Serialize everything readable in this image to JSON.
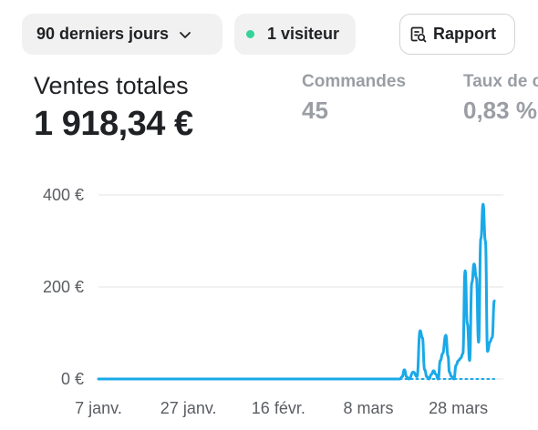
{
  "filters": {
    "period_label": "90 derniers jours",
    "visitors_label": "1 visiteur",
    "report_label": "Rapport"
  },
  "metrics": {
    "total_sales": {
      "label": "Ventes totales",
      "value": "1 918,34 €"
    },
    "orders": {
      "label": "Commandes",
      "value": "45"
    },
    "conversion": {
      "label": "Taux de c",
      "value": "0,83 %"
    }
  },
  "colors": {
    "line": "#1aa9e8",
    "dot_green": "#34d399",
    "grid": "#e3e3e3",
    "muted": "#9a9ea4",
    "axis_text": "#5a5d62"
  },
  "icons": {
    "period": "chevron-down-icon",
    "report": "report-search-icon"
  },
  "chart_data": {
    "type": "line",
    "xlabel": "",
    "ylabel": "",
    "ylim": [
      0,
      400
    ],
    "grid": true,
    "y_ticks": [
      {
        "value": 400,
        "label": "400 €"
      },
      {
        "value": 200,
        "label": "200 €"
      },
      {
        "value": 0,
        "label": "0 €"
      }
    ],
    "x_ticks": [
      {
        "day": 0,
        "label": "7 janv."
      },
      {
        "day": 20,
        "label": "27 janv."
      },
      {
        "day": 40,
        "label": "16 févr."
      },
      {
        "day": 60,
        "label": "8 mars"
      },
      {
        "day": 80,
        "label": "28 mars"
      }
    ],
    "x_range": [
      0,
      90
    ],
    "series": [
      {
        "style": "solid",
        "points": [
          [
            0,
            0
          ],
          [
            67,
            0
          ],
          [
            67.5,
            5
          ],
          [
            68,
            20
          ],
          [
            68.5,
            5
          ],
          [
            69,
            0
          ],
          [
            70,
            15
          ],
          [
            70.8,
            5
          ],
          [
            71.5,
            105
          ],
          [
            72,
            90
          ],
          [
            72.5,
            20
          ],
          [
            73,
            5
          ],
          [
            73.5,
            0
          ],
          [
            74,
            10
          ],
          [
            74.5,
            18
          ],
          [
            75,
            10
          ],
          [
            75.5,
            0
          ],
          [
            76,
            40
          ],
          [
            76.5,
            55
          ],
          [
            77.2,
            95
          ],
          [
            77.7,
            50
          ],
          [
            78,
            15
          ],
          [
            78.5,
            5
          ],
          [
            79,
            0
          ],
          [
            79.5,
            30
          ],
          [
            80,
            40
          ],
          [
            80.5,
            45
          ],
          [
            81,
            55
          ],
          [
            81.5,
            235
          ],
          [
            82,
            120
          ],
          [
            82.5,
            40
          ],
          [
            83,
            210
          ],
          [
            83.5,
            250
          ],
          [
            84,
            220
          ],
          [
            84.5,
            80
          ],
          [
            85,
            305
          ],
          [
            85.5,
            380
          ],
          [
            86,
            300
          ],
          [
            86.5,
            60
          ],
          [
            87,
            80
          ],
          [
            87.5,
            90
          ],
          [
            88,
            170
          ]
        ]
      },
      {
        "style": "dotted",
        "points": [
          [
            67,
            0
          ],
          [
            88,
            0
          ]
        ]
      }
    ]
  }
}
